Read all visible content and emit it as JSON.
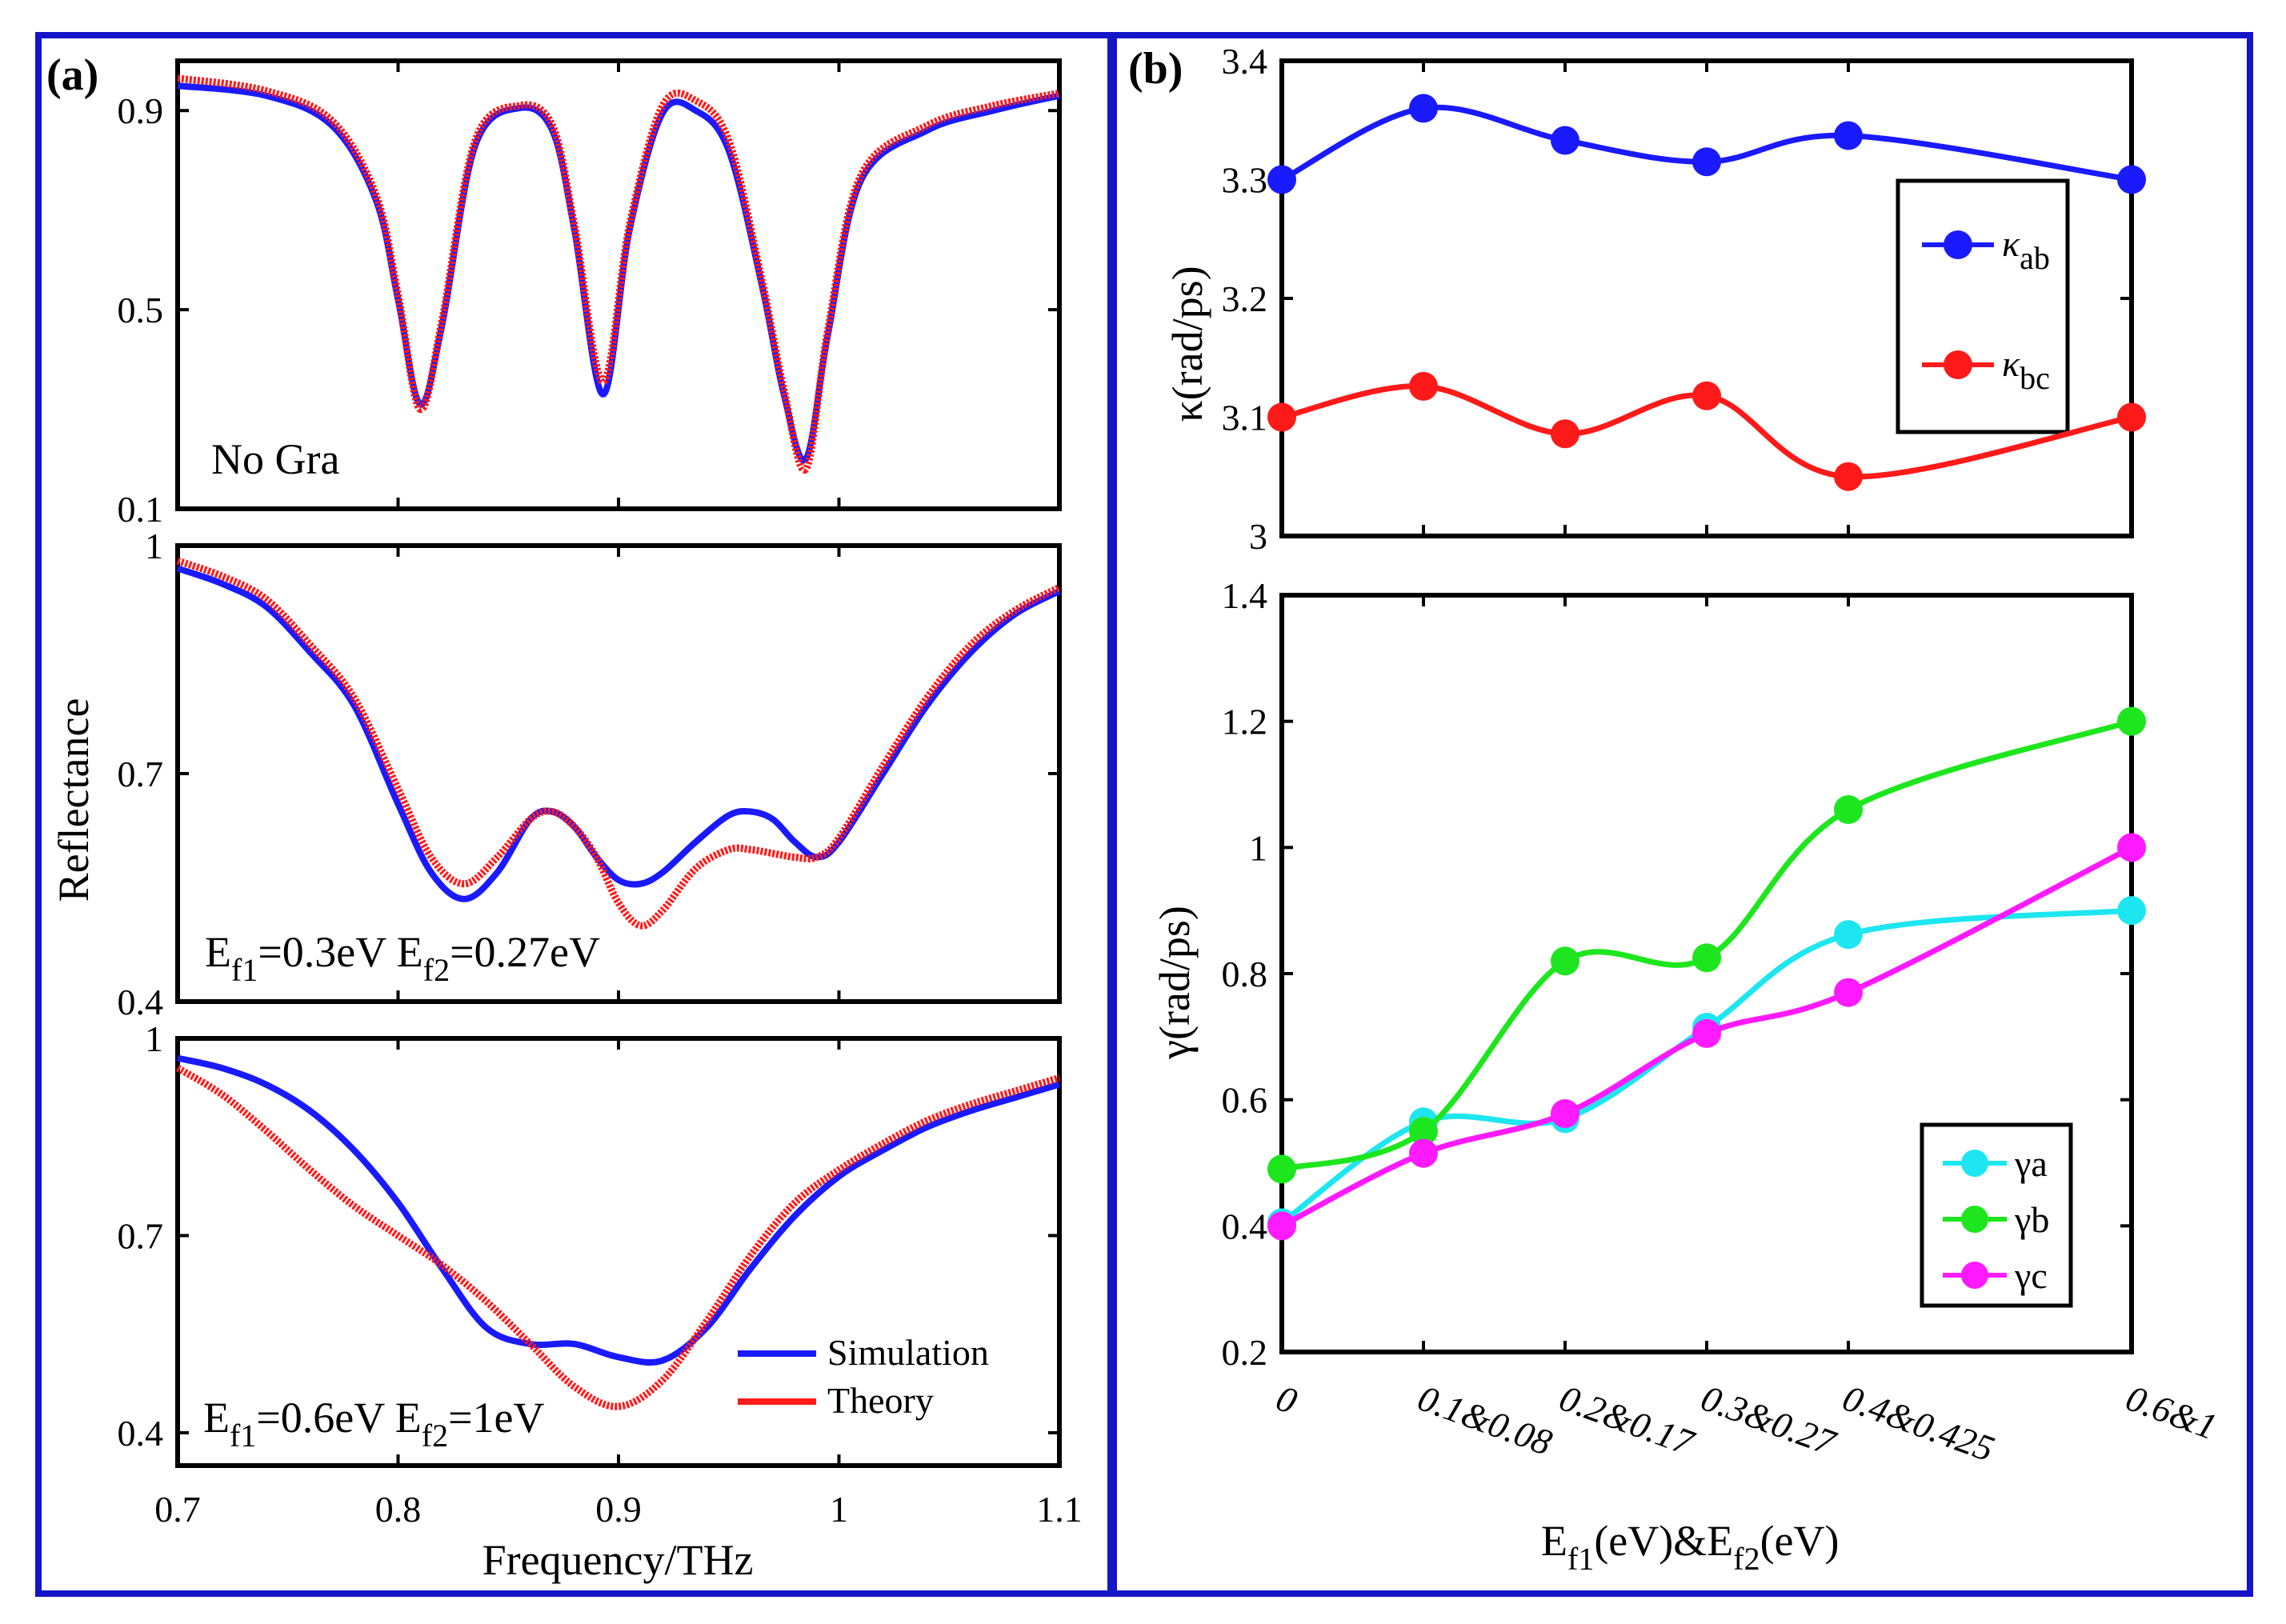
{
  "colors": {
    "frame": "#1414c8",
    "sim": "#1a1aff",
    "theory": "#ff1a1a",
    "kab": "#1a1aff",
    "kbc": "#ff1a1a",
    "ga": "#1ee6f0",
    "gb": "#1ee61e",
    "gc": "#ff1aff"
  },
  "panel_a": {
    "label": "(a)",
    "ylabel": "Reflectance",
    "xlabel": "Frequency/THz",
    "xticks": [
      "0.7",
      "0.8",
      "0.9",
      "1",
      "1.1"
    ],
    "legend": {
      "sim": "Simulation",
      "theory": "Theory"
    }
  },
  "panel_b": {
    "label": "(b)",
    "top_ylabel": "κ(rad/ps)",
    "bot_ylabel": "γ(rad/ps)",
    "xlabel": {
      "main": "E",
      "s1": "f1",
      "mid": "(eV)&E",
      "s2": "f2",
      "end": "(eV)"
    },
    "kappa_legend": {
      "ab_sym": "κ",
      "ab_sub": "ab",
      "bc_sym": "κ",
      "bc_sub": "bc"
    },
    "gamma_legend": {
      "a": "γa",
      "b": "γb",
      "c": "γc"
    }
  },
  "chart_data": [
    {
      "type": "line",
      "title": "No Gra",
      "xlabel": "Frequency/THz",
      "ylabel": "Reflectance",
      "xlim": [
        0.7,
        1.1
      ],
      "ylim": [
        0.1,
        1.0
      ],
      "yticks": [
        "0.1",
        "0.5",
        "0.9"
      ],
      "ytick_values": [
        0.1,
        0.5,
        0.9
      ],
      "series": [
        {
          "name": "Simulation",
          "x": [
            0.7,
            0.74,
            0.77,
            0.79,
            0.8,
            0.81,
            0.82,
            0.835,
            0.855,
            0.87,
            0.88,
            0.893,
            0.905,
            0.92,
            0.935,
            0.95,
            0.965,
            0.975,
            0.985,
            0.995,
            1.01,
            1.04,
            1.07,
            1.1
          ],
          "y": [
            0.95,
            0.93,
            0.87,
            0.72,
            0.52,
            0.31,
            0.47,
            0.83,
            0.905,
            0.86,
            0.66,
            0.33,
            0.66,
            0.895,
            0.9,
            0.82,
            0.55,
            0.33,
            0.2,
            0.45,
            0.76,
            0.86,
            0.9,
            0.93
          ]
        },
        {
          "name": "Theory",
          "x": [
            0.7,
            0.74,
            0.77,
            0.79,
            0.8,
            0.81,
            0.82,
            0.835,
            0.855,
            0.87,
            0.88,
            0.893,
            0.905,
            0.92,
            0.935,
            0.95,
            0.965,
            0.975,
            0.985,
            0.995,
            1.01,
            1.04,
            1.07,
            1.1
          ],
          "y": [
            0.965,
            0.94,
            0.88,
            0.73,
            0.53,
            0.3,
            0.48,
            0.84,
            0.91,
            0.87,
            0.67,
            0.355,
            0.67,
            0.91,
            0.92,
            0.84,
            0.56,
            0.34,
            0.18,
            0.46,
            0.77,
            0.87,
            0.91,
            0.935
          ]
        }
      ]
    },
    {
      "type": "line",
      "title": {
        "a": "E",
        "b": "f1",
        "c": "=0.3eV E",
        "d": "f2",
        "e": "=0.27eV"
      },
      "xlim": [
        0.7,
        1.1
      ],
      "ylim": [
        0.4,
        1.0
      ],
      "yticks": [
        "0.4",
        "0.7",
        "1"
      ],
      "ytick_values": [
        0.4,
        0.7,
        1.0
      ],
      "series": [
        {
          "name": "Simulation",
          "x": [
            0.7,
            0.72,
            0.74,
            0.76,
            0.78,
            0.8,
            0.815,
            0.83,
            0.845,
            0.86,
            0.87,
            0.88,
            0.89,
            0.9,
            0.91,
            0.92,
            0.935,
            0.95,
            0.96,
            0.97,
            0.98,
            0.99,
            1.0,
            1.02,
            1.04,
            1.06,
            1.08,
            1.1
          ],
          "y": [
            0.97,
            0.95,
            0.92,
            0.86,
            0.79,
            0.66,
            0.57,
            0.535,
            0.57,
            0.64,
            0.65,
            0.63,
            0.59,
            0.56,
            0.555,
            0.57,
            0.61,
            0.645,
            0.65,
            0.64,
            0.61,
            0.59,
            0.61,
            0.7,
            0.79,
            0.86,
            0.91,
            0.94
          ]
        },
        {
          "name": "Theory",
          "x": [
            0.7,
            0.72,
            0.74,
            0.76,
            0.78,
            0.8,
            0.815,
            0.83,
            0.845,
            0.86,
            0.87,
            0.88,
            0.89,
            0.9,
            0.91,
            0.92,
            0.935,
            0.95,
            0.96,
            0.97,
            0.98,
            0.99,
            1.0,
            1.02,
            1.04,
            1.06,
            1.08,
            1.1
          ],
          "y": [
            0.98,
            0.96,
            0.93,
            0.87,
            0.8,
            0.68,
            0.59,
            0.555,
            0.59,
            0.64,
            0.65,
            0.63,
            0.59,
            0.53,
            0.5,
            0.52,
            0.575,
            0.6,
            0.6,
            0.595,
            0.59,
            0.59,
            0.615,
            0.71,
            0.8,
            0.87,
            0.915,
            0.945
          ]
        }
      ]
    },
    {
      "type": "line",
      "title": {
        "a": "E",
        "b": "f1",
        "c": "=0.6eV E",
        "d": "f2",
        "e": "=1eV"
      },
      "xlim": [
        0.7,
        1.1
      ],
      "ylim": [
        0.35,
        1.0
      ],
      "yticks": [
        "0.4",
        "0.7",
        "1"
      ],
      "ytick_values": [
        0.4,
        0.7,
        1.0
      ],
      "series": [
        {
          "name": "Simulation",
          "x": [
            0.7,
            0.72,
            0.74,
            0.76,
            0.78,
            0.8,
            0.82,
            0.84,
            0.86,
            0.88,
            0.9,
            0.92,
            0.94,
            0.96,
            0.98,
            1.0,
            1.02,
            1.04,
            1.06,
            1.08,
            1.1
          ],
          "y": [
            0.97,
            0.955,
            0.93,
            0.89,
            0.83,
            0.75,
            0.65,
            0.56,
            0.535,
            0.535,
            0.515,
            0.51,
            0.56,
            0.65,
            0.73,
            0.79,
            0.83,
            0.865,
            0.89,
            0.91,
            0.93
          ]
        },
        {
          "name": "Theory",
          "x": [
            0.7,
            0.72,
            0.74,
            0.76,
            0.78,
            0.8,
            0.82,
            0.84,
            0.86,
            0.88,
            0.9,
            0.92,
            0.94,
            0.96,
            0.98,
            1.0,
            1.02,
            1.04,
            1.06,
            1.08,
            1.1
          ],
          "y": [
            0.955,
            0.915,
            0.86,
            0.8,
            0.745,
            0.7,
            0.655,
            0.6,
            0.535,
            0.47,
            0.44,
            0.48,
            0.57,
            0.67,
            0.75,
            0.8,
            0.84,
            0.875,
            0.9,
            0.92,
            0.94
          ]
        }
      ]
    },
    {
      "type": "line",
      "ylabel": "κ(rad/ps)",
      "ylim": [
        3.0,
        3.4
      ],
      "yticks": [
        "3",
        "3.1",
        "3.2",
        "3.3",
        "3.4"
      ],
      "ytick_values": [
        3.0,
        3.1,
        3.2,
        3.3,
        3.4
      ],
      "categories": [
        "0",
        "0.1&0.08",
        "0.2&0.17",
        "0.3&0.27",
        "0.4&0.425",
        "0.6&1"
      ],
      "x": [
        0,
        0.1,
        0.2,
        0.3,
        0.4,
        0.6
      ],
      "series": [
        {
          "name": "κab",
          "values": [
            3.3,
            3.36,
            3.333,
            3.315,
            3.337,
            3.3
          ]
        },
        {
          "name": "κbc",
          "values": [
            3.1,
            3.126,
            3.086,
            3.118,
            3.05,
            3.1
          ]
        }
      ]
    },
    {
      "type": "line",
      "xlabel": "Ef1(eV)&Ef2(eV)",
      "ylabel": "γ(rad/ps)",
      "ylim": [
        0.2,
        1.4
      ],
      "yticks": [
        "0.2",
        "0.4",
        "0.6",
        "0.8",
        "1",
        "1.2",
        "1.4"
      ],
      "ytick_values": [
        0.2,
        0.4,
        0.6,
        0.8,
        1.0,
        1.2,
        1.4
      ],
      "categories": [
        "0",
        "0.1&0.08",
        "0.2&0.17",
        "0.3&0.27",
        "0.4&0.425",
        "0.6&1"
      ],
      "x": [
        0,
        0.1,
        0.2,
        0.3,
        0.4,
        0.6
      ],
      "series": [
        {
          "name": "γa",
          "values": [
            0.405,
            0.565,
            0.57,
            0.715,
            0.862,
            0.9
          ]
        },
        {
          "name": "γb",
          "values": [
            0.49,
            0.55,
            0.82,
            0.825,
            1.06,
            1.2
          ]
        },
        {
          "name": "γc",
          "values": [
            0.4,
            0.515,
            0.578,
            0.705,
            0.77,
            1.0
          ]
        }
      ]
    }
  ]
}
